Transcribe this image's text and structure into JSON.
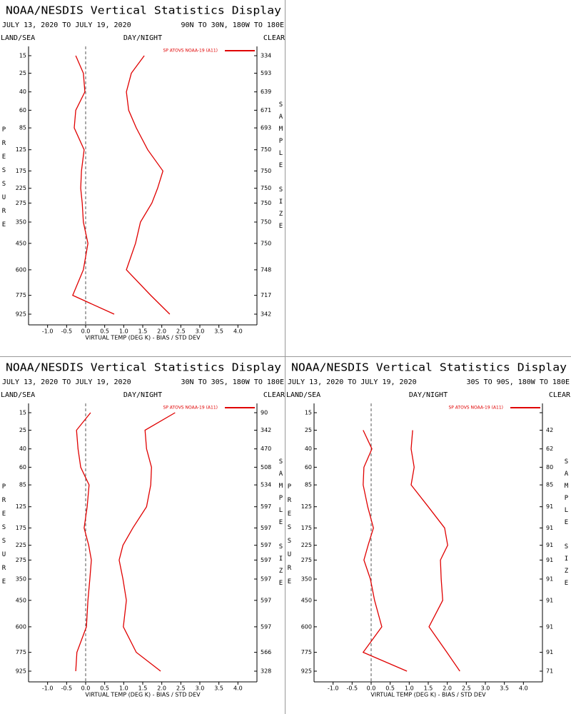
{
  "chart_data": [
    {
      "type": "line",
      "title": "NOAA/NESDIS Vertical Statistics Display",
      "date_range": "JULY 13, 2020 TO JULY 19, 2020",
      "region": "90N TO 30N, 180W TO 180E",
      "land_sea_label": "LAND/SEA",
      "day_night_label": "DAY/NIGHT",
      "clear_label": "CLEAR",
      "ylabel": "PRESSURE",
      "y2label": "SAMPLE SIZE",
      "xlabel": "VIRTUAL TEMP (DEG K) - BIAS / STD DEV",
      "categories": [
        15,
        25,
        40,
        60,
        85,
        125,
        175,
        225,
        275,
        350,
        450,
        600,
        775,
        925
      ],
      "series": [
        {
          "name": "SP ATOVS NOAA-19 (A11)",
          "color": "#e00000",
          "values": [
            -0.26,
            -0.06,
            -0.02,
            -0.26,
            -0.3,
            -0.04,
            -0.11,
            -0.13,
            -0.09,
            -0.06,
            0.06,
            -0.06,
            -0.34,
            0.75
          ],
          "std_dev": [
            1.54,
            1.2,
            1.07,
            1.13,
            1.33,
            1.63,
            2.03,
            1.89,
            1.74,
            1.44,
            1.31,
            1.07,
            1.71,
            2.21
          ]
        }
      ],
      "sample_size": [
        334,
        593,
        639,
        671,
        693,
        750,
        750,
        750,
        750,
        750,
        750,
        748,
        717,
        342
      ],
      "xlim": [
        -1.5,
        4.5
      ],
      "xticks": [
        {
          "value": -1,
          "label": "-1.0"
        },
        -0.5,
        {
          "value": 0,
          "label": "0.0"
        },
        0.5,
        {
          "value": 1,
          "label": "1.0"
        },
        1.5,
        {
          "value": 2,
          "label": "2.0"
        },
        2.5,
        {
          "value": 3,
          "label": "3.0"
        },
        3.5,
        {
          "value": 4,
          "label": "4.0"
        }
      ]
    },
    {
      "type": "line",
      "title": "NOAA/NESDIS Vertical Statistics Display",
      "date_range": "JULY 13, 2020 TO JULY 19, 2020",
      "region": "30N TO 30S, 180W TO 180E",
      "land_sea_label": "LAND/SEA",
      "day_night_label": "DAY/NIGHT",
      "clear_label": "CLEAR",
      "ylabel": "PRESSURE",
      "y2label": "SAMPLE SIZE",
      "xlabel": "VIRTUAL TEMP (DEG K) - BIAS / STD DEV",
      "categories": [
        15,
        25,
        40,
        60,
        85,
        125,
        175,
        225,
        275,
        350,
        450,
        600,
        775,
        925
      ],
      "series": [
        {
          "name": "SP ATOVS NOAA-19 (A11)",
          "color": "#e00000",
          "values": [
            0.13,
            -0.24,
            -0.2,
            -0.13,
            0.09,
            0.04,
            -0.04,
            0.08,
            0.15,
            0.11,
            0.06,
            0.02,
            -0.23,
            -0.26
          ],
          "std_dev": [
            2.35,
            1.56,
            1.6,
            1.73,
            1.71,
            1.6,
            1.24,
            0.98,
            0.88,
            0.98,
            1.07,
            0.99,
            1.33,
            1.97
          ]
        }
      ],
      "sample_size": [
        90,
        342,
        470,
        508,
        534,
        597,
        597,
        597,
        597,
        597,
        597,
        597,
        566,
        328
      ],
      "xlim": [
        -1.5,
        4.5
      ],
      "xticks": [
        {
          "value": -1,
          "label": "-1.0"
        },
        -0.5,
        {
          "value": 0,
          "label": "0.0"
        },
        0.5,
        {
          "value": 1,
          "label": "1.0"
        },
        1.5,
        {
          "value": 2,
          "label": "2.0"
        },
        2.5,
        {
          "value": 3,
          "label": "3.0"
        },
        3.5,
        {
          "value": 4,
          "label": "4.0"
        }
      ]
    },
    {
      "type": "line",
      "title": "NOAA/NESDIS Vertical Statistics Display",
      "date_range": "JULY 13, 2020 TO JULY 19, 2020",
      "region": "30S TO 90S, 180W TO 180E",
      "land_sea_label": "LAND/SEA",
      "day_night_label": "DAY/NIGHT",
      "clear_label": "CLEAR",
      "ylabel": "PRESSURE",
      "y2label": "SAMPLE SIZE",
      "xlabel": "VIRTUAL TEMP (DEG K) - BIAS / STD DEV",
      "categories": [
        15,
        25,
        40,
        60,
        85,
        125,
        175,
        225,
        275,
        350,
        450,
        600,
        775,
        925
      ],
      "series": [
        {
          "name": "SP ATOVS NOAA-19 (A11)",
          "color": "#e00000",
          "values": [
            null,
            -0.21,
            0.02,
            -0.19,
            -0.21,
            -0.09,
            0.06,
            -0.08,
            -0.19,
            -0.02,
            0.09,
            0.28,
            -0.21,
            0.94
          ],
          "std_dev": [
            null,
            1.09,
            1.05,
            1.13,
            1.05,
            1.5,
            1.93,
            2.01,
            1.82,
            1.84,
            1.88,
            1.52,
            1.99,
            2.33
          ]
        }
      ],
      "sample_size": [
        null,
        42,
        62,
        80,
        85,
        91,
        91,
        91,
        91,
        91,
        91,
        91,
        91,
        71
      ],
      "xlim": [
        -1.5,
        4.5
      ],
      "xticks": [
        {
          "value": -1,
          "label": "-1.0"
        },
        -0.5,
        {
          "value": 0,
          "label": "0.0"
        },
        0.5,
        {
          "value": 1,
          "label": "1.0"
        },
        1.5,
        {
          "value": 2,
          "label": "2.0"
        },
        2.5,
        {
          "value": 3,
          "label": "3.0"
        },
        3.5,
        {
          "value": 4,
          "label": "4.0"
        }
      ]
    }
  ]
}
